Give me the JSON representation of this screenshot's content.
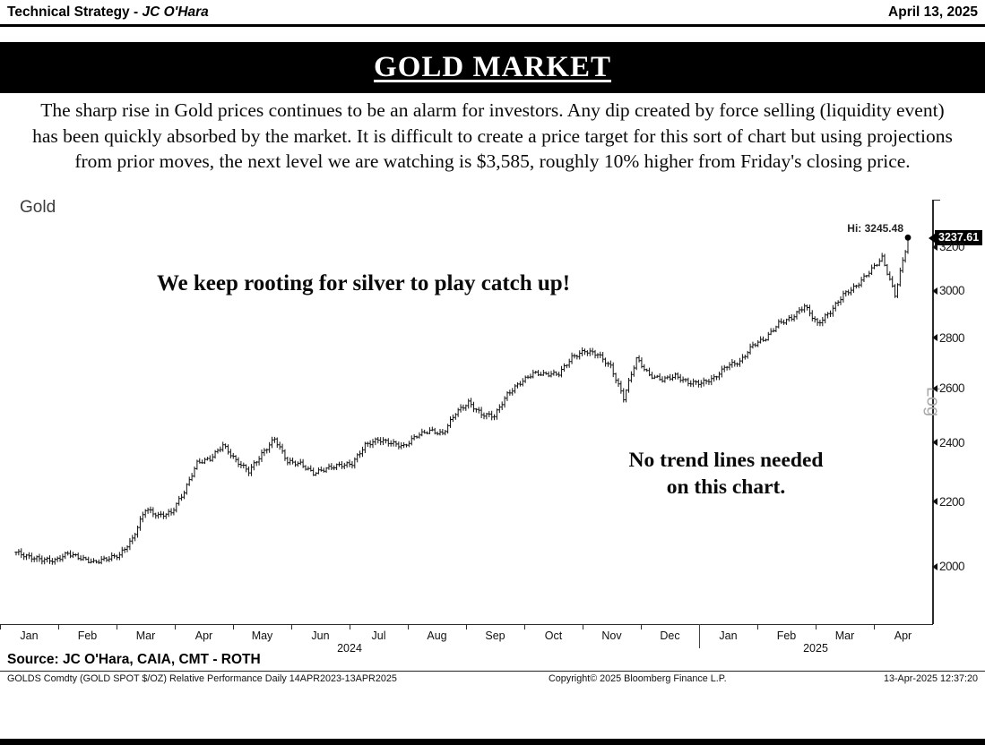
{
  "header": {
    "title_bold": "Technical Strategy - ",
    "title_italic": "JC O'Hara",
    "date": "April 13, 2025"
  },
  "banner": {
    "title": "GOLD MARKET"
  },
  "commentary": "The sharp rise in Gold prices continues to be an alarm for investors. Any dip created by force selling (liquidity event) has been quickly absorbed by the market. It is difficult to create a price target for this sort of chart but using projections from prior moves, the next level we are watching is $3,585, roughly 10% higher from Friday's closing price.",
  "chart_data": {
    "type": "ohlc-bar",
    "title": "Gold",
    "y_scale": "log",
    "scale_label": "Log",
    "y_ticks": [
      3200,
      3000,
      2800,
      2600,
      2400,
      2200,
      2000
    ],
    "ylim": [
      1840,
      3290
    ],
    "x_months": [
      "Jan",
      "Feb",
      "Mar",
      "Apr",
      "May",
      "Jun",
      "Jul",
      "Aug",
      "Sep",
      "Oct",
      "Nov",
      "Dec",
      "Jan",
      "Feb",
      "Mar",
      "Apr"
    ],
    "year_labels": [
      {
        "label": "2024",
        "boundary": 6
      },
      {
        "label": "2025",
        "boundary": 14
      }
    ],
    "year_divider_boundary": 12,
    "weekly_close": [
      2043,
      2029,
      2022,
      2018,
      2040,
      2025,
      2013,
      2024,
      2035,
      2083,
      2178,
      2156,
      2166,
      2233,
      2330,
      2344,
      2392,
      2338,
      2302,
      2360,
      2415,
      2334,
      2327,
      2294,
      2311,
      2322,
      2327,
      2392,
      2411,
      2400,
      2387,
      2426,
      2443,
      2431,
      2508,
      2546,
      2503,
      2497,
      2577,
      2622,
      2658,
      2654,
      2657,
      2721,
      2747,
      2734,
      2684,
      2563,
      2716,
      2650,
      2633,
      2648,
      2622,
      2621,
      2639,
      2689,
      2703,
      2771,
      2798,
      2861,
      2883,
      2936,
      2858,
      2910,
      2984,
      3022,
      3085,
      3150,
      2982,
      3237.61
    ],
    "high": 3245.48,
    "high_label": "Hi: 3245.48",
    "last": 3237.61,
    "last_label": "3237.61",
    "annotations": [
      {
        "text": "We keep rooting for silver to play catch up!"
      },
      {
        "text": "No trend lines needed\non this chart."
      }
    ]
  },
  "footer": {
    "source": "Source: JC O'Hara, CAIA, CMT - ROTH",
    "chart_meta": "GOLDS Comdty (GOLD SPOT $/OZ) Relative Performance  Daily 14APR2023-13APR2025",
    "copyright": "Copyright© 2025 Bloomberg Finance L.P.",
    "timestamp": "13-Apr-2025 12:37:20"
  }
}
